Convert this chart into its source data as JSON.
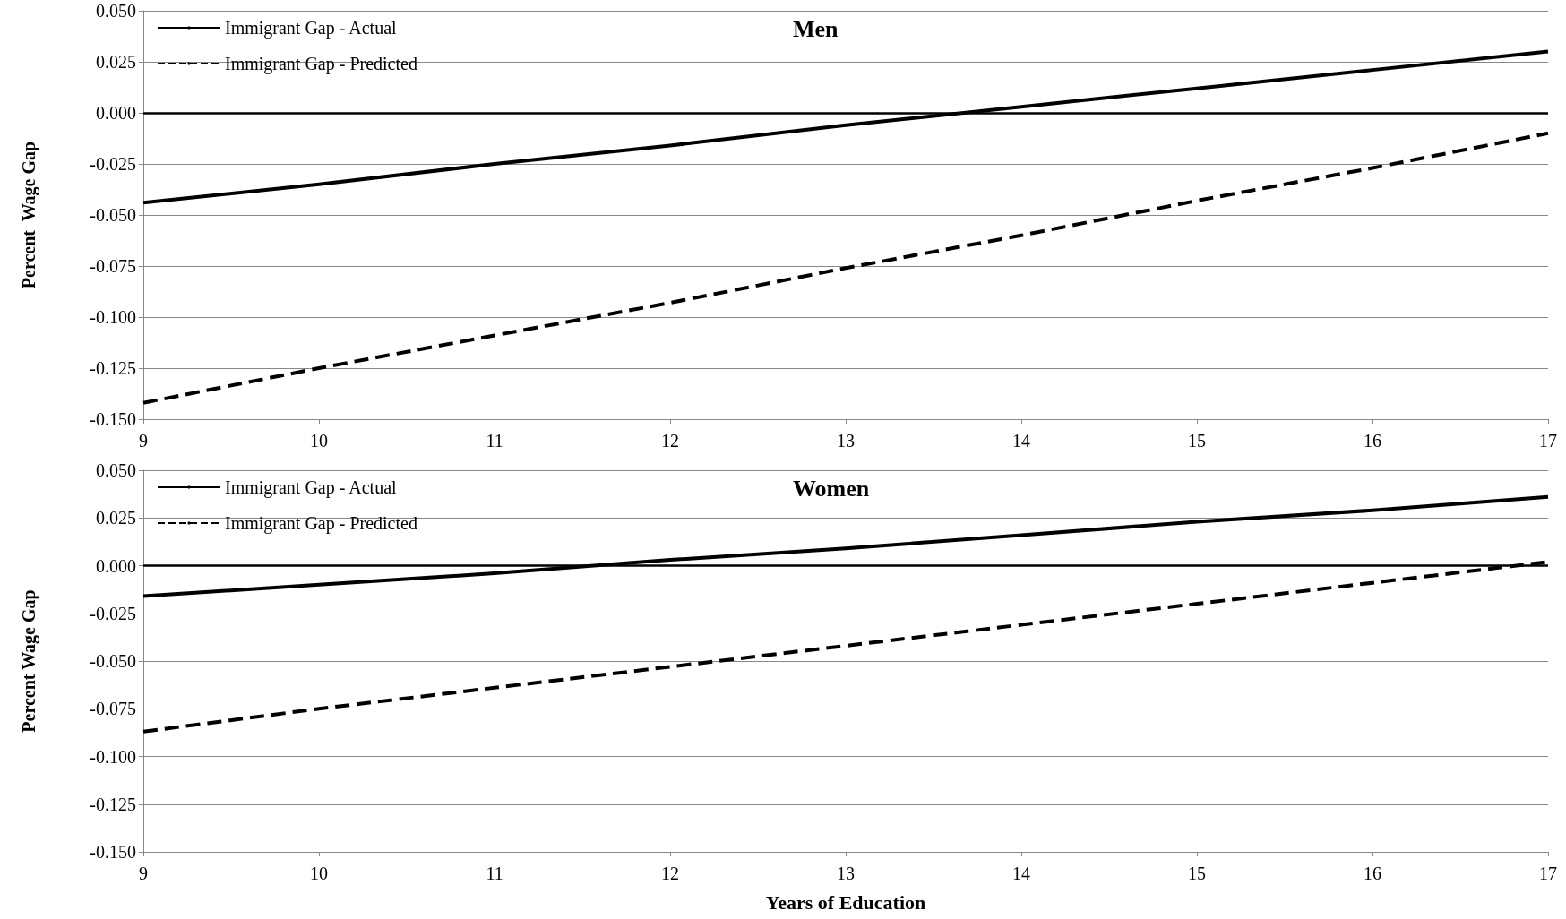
{
  "chart_data": [
    {
      "type": "line",
      "title": "Men",
      "ylabel": "Percent  Wage Gap",
      "x": [
        9,
        10,
        11,
        12,
        13,
        14,
        15,
        16,
        17
      ],
      "series": [
        {
          "name": "Immigrant Gap - Actual",
          "color": "#000000",
          "line_style": "solid",
          "values": [
            -0.044,
            -0.035,
            -0.025,
            -0.016,
            -0.006,
            0.003,
            0.012,
            0.021,
            0.03
          ]
        },
        {
          "name": "Immigrant Gap - Predicted",
          "color": "#000000",
          "line_style": "dashed",
          "values": [
            -0.142,
            -0.125,
            -0.109,
            -0.093,
            -0.076,
            -0.06,
            -0.043,
            -0.027,
            -0.01
          ]
        }
      ],
      "xlim": [
        9,
        17
      ],
      "xticks": [
        9,
        10,
        11,
        12,
        13,
        14,
        15,
        16,
        17
      ],
      "ylim": [
        -0.15,
        0.05
      ],
      "yticks": [
        {
          "value": -0.15,
          "label": "-0.150"
        },
        {
          "value": -0.125,
          "label": "-0.125"
        },
        {
          "value": -0.1,
          "label": "-0.100"
        },
        {
          "value": -0.075,
          "label": "-0.075"
        },
        {
          "value": -0.05,
          "label": "-0.050"
        },
        {
          "value": -0.025,
          "label": "-0.025"
        },
        {
          "value": 0,
          "label": "0.000"
        },
        {
          "value": 0.025,
          "label": "0.025"
        },
        {
          "value": 0.05,
          "label": "0.050"
        }
      ],
      "ref_lines": [
        {
          "axis": "y",
          "value": 0,
          "color": "#000000"
        }
      ],
      "grid": "y",
      "legend": "top left",
      "marker": "none"
    },
    {
      "type": "line",
      "title": "Women",
      "xlabel": "Years of Education",
      "ylabel": "Percent Wage Gap",
      "x": [
        9,
        10,
        11,
        12,
        13,
        14,
        15,
        16,
        17
      ],
      "series": [
        {
          "name": "Immigrant Gap - Actual",
          "color": "#000000",
          "line_style": "solid",
          "values": [
            -0.016,
            -0.01,
            -0.004,
            0.003,
            0.009,
            0.016,
            0.023,
            0.029,
            0.036
          ]
        },
        {
          "name": "Immigrant Gap - Predicted",
          "color": "#000000",
          "line_style": "dashed",
          "values": [
            -0.087,
            -0.075,
            -0.064,
            -0.053,
            -0.042,
            -0.031,
            -0.02,
            -0.009,
            0.002
          ]
        }
      ],
      "xlim": [
        9,
        17
      ],
      "xticks": [
        9,
        10,
        11,
        12,
        13,
        14,
        15,
        16,
        17
      ],
      "ylim": [
        -0.15,
        0.05
      ],
      "yticks": [
        {
          "value": -0.15,
          "label": "-0.150"
        },
        {
          "value": -0.125,
          "label": "-0.125"
        },
        {
          "value": -0.1,
          "label": "-0.100"
        },
        {
          "value": -0.075,
          "label": "-0.075"
        },
        {
          "value": -0.05,
          "label": "-0.050"
        },
        {
          "value": -0.025,
          "label": "-0.025"
        },
        {
          "value": 0,
          "label": "0.000"
        },
        {
          "value": 0.025,
          "label": "0.025"
        },
        {
          "value": 0.05,
          "label": "0.050"
        }
      ],
      "ref_lines": [
        {
          "axis": "y",
          "value": 0,
          "color": "#000000"
        }
      ],
      "grid": "y",
      "legend": "top left",
      "marker": "none"
    }
  ]
}
